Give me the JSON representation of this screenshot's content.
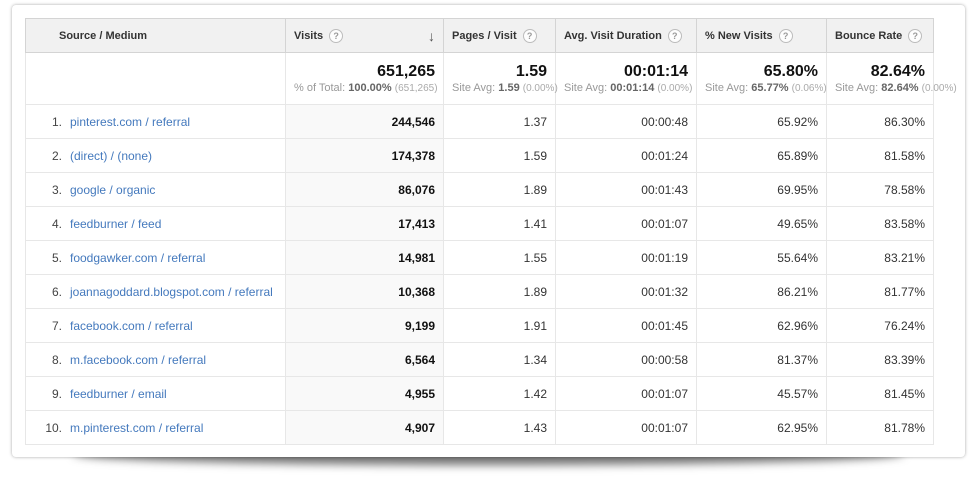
{
  "icons": {
    "sort_desc": "↓",
    "help": "?"
  },
  "colors": {
    "link": "#4479bd",
    "header_bg": "#f1f1f1",
    "sorted_column_bg": "#f9f9f9"
  },
  "table": {
    "columns": [
      {
        "id": "source",
        "label": "Source / Medium",
        "has_help": false,
        "sorted": false
      },
      {
        "id": "visits",
        "label": "Visits",
        "has_help": true,
        "sorted": true
      },
      {
        "id": "pages",
        "label": "Pages / Visit",
        "has_help": true,
        "sorted": false
      },
      {
        "id": "duration",
        "label": "Avg. Visit Duration",
        "has_help": true,
        "sorted": false
      },
      {
        "id": "new",
        "label": "% New Visits",
        "has_help": true,
        "sorted": false
      },
      {
        "id": "bounce",
        "label": "Bounce Rate",
        "has_help": true,
        "sorted": false
      }
    ],
    "summary": {
      "metrics": [
        {
          "value": "651,265",
          "sub_label": "% of Total:",
          "sub_value": "100.00%",
          "sub_paren": "(651,265)"
        },
        {
          "value": "1.59",
          "sub_label": "Site Avg:",
          "sub_value": "1.59",
          "sub_paren": "(0.00%)"
        },
        {
          "value": "00:01:14",
          "sub_label": "Site Avg:",
          "sub_value": "00:01:14",
          "sub_paren": "(0.00%)"
        },
        {
          "value": "65.80%",
          "sub_label": "Site Avg:",
          "sub_value": "65.77%",
          "sub_paren": "(0.06%)"
        },
        {
          "value": "82.64%",
          "sub_label": "Site Avg:",
          "sub_value": "82.64%",
          "sub_paren": "(0.00%)"
        }
      ]
    },
    "rows": [
      {
        "rank": "1.",
        "source": "pinterest.com / referral",
        "visits": "244,546",
        "pages": "1.37",
        "duration": "00:00:48",
        "new": "65.92%",
        "bounce": "86.30%"
      },
      {
        "rank": "2.",
        "source": "(direct) / (none)",
        "visits": "174,378",
        "pages": "1.59",
        "duration": "00:01:24",
        "new": "65.89%",
        "bounce": "81.58%"
      },
      {
        "rank": "3.",
        "source": "google / organic",
        "visits": "86,076",
        "pages": "1.89",
        "duration": "00:01:43",
        "new": "69.95%",
        "bounce": "78.58%"
      },
      {
        "rank": "4.",
        "source": "feedburner / feed",
        "visits": "17,413",
        "pages": "1.41",
        "duration": "00:01:07",
        "new": "49.65%",
        "bounce": "83.58%"
      },
      {
        "rank": "5.",
        "source": "foodgawker.com / referral",
        "visits": "14,981",
        "pages": "1.55",
        "duration": "00:01:19",
        "new": "55.64%",
        "bounce": "83.21%"
      },
      {
        "rank": "6.",
        "source": "joannagoddard.blogspot.com / referral",
        "visits": "10,368",
        "pages": "1.89",
        "duration": "00:01:32",
        "new": "86.21%",
        "bounce": "81.77%"
      },
      {
        "rank": "7.",
        "source": "facebook.com / referral",
        "visits": "9,199",
        "pages": "1.91",
        "duration": "00:01:45",
        "new": "62.96%",
        "bounce": "76.24%"
      },
      {
        "rank": "8.",
        "source": "m.facebook.com / referral",
        "visits": "6,564",
        "pages": "1.34",
        "duration": "00:00:58",
        "new": "81.37%",
        "bounce": "83.39%"
      },
      {
        "rank": "9.",
        "source": "feedburner / email",
        "visits": "4,955",
        "pages": "1.42",
        "duration": "00:01:07",
        "new": "45.57%",
        "bounce": "81.45%"
      },
      {
        "rank": "10.",
        "source": "m.pinterest.com / referral",
        "visits": "4,907",
        "pages": "1.43",
        "duration": "00:01:07",
        "new": "62.95%",
        "bounce": "81.78%"
      }
    ]
  }
}
